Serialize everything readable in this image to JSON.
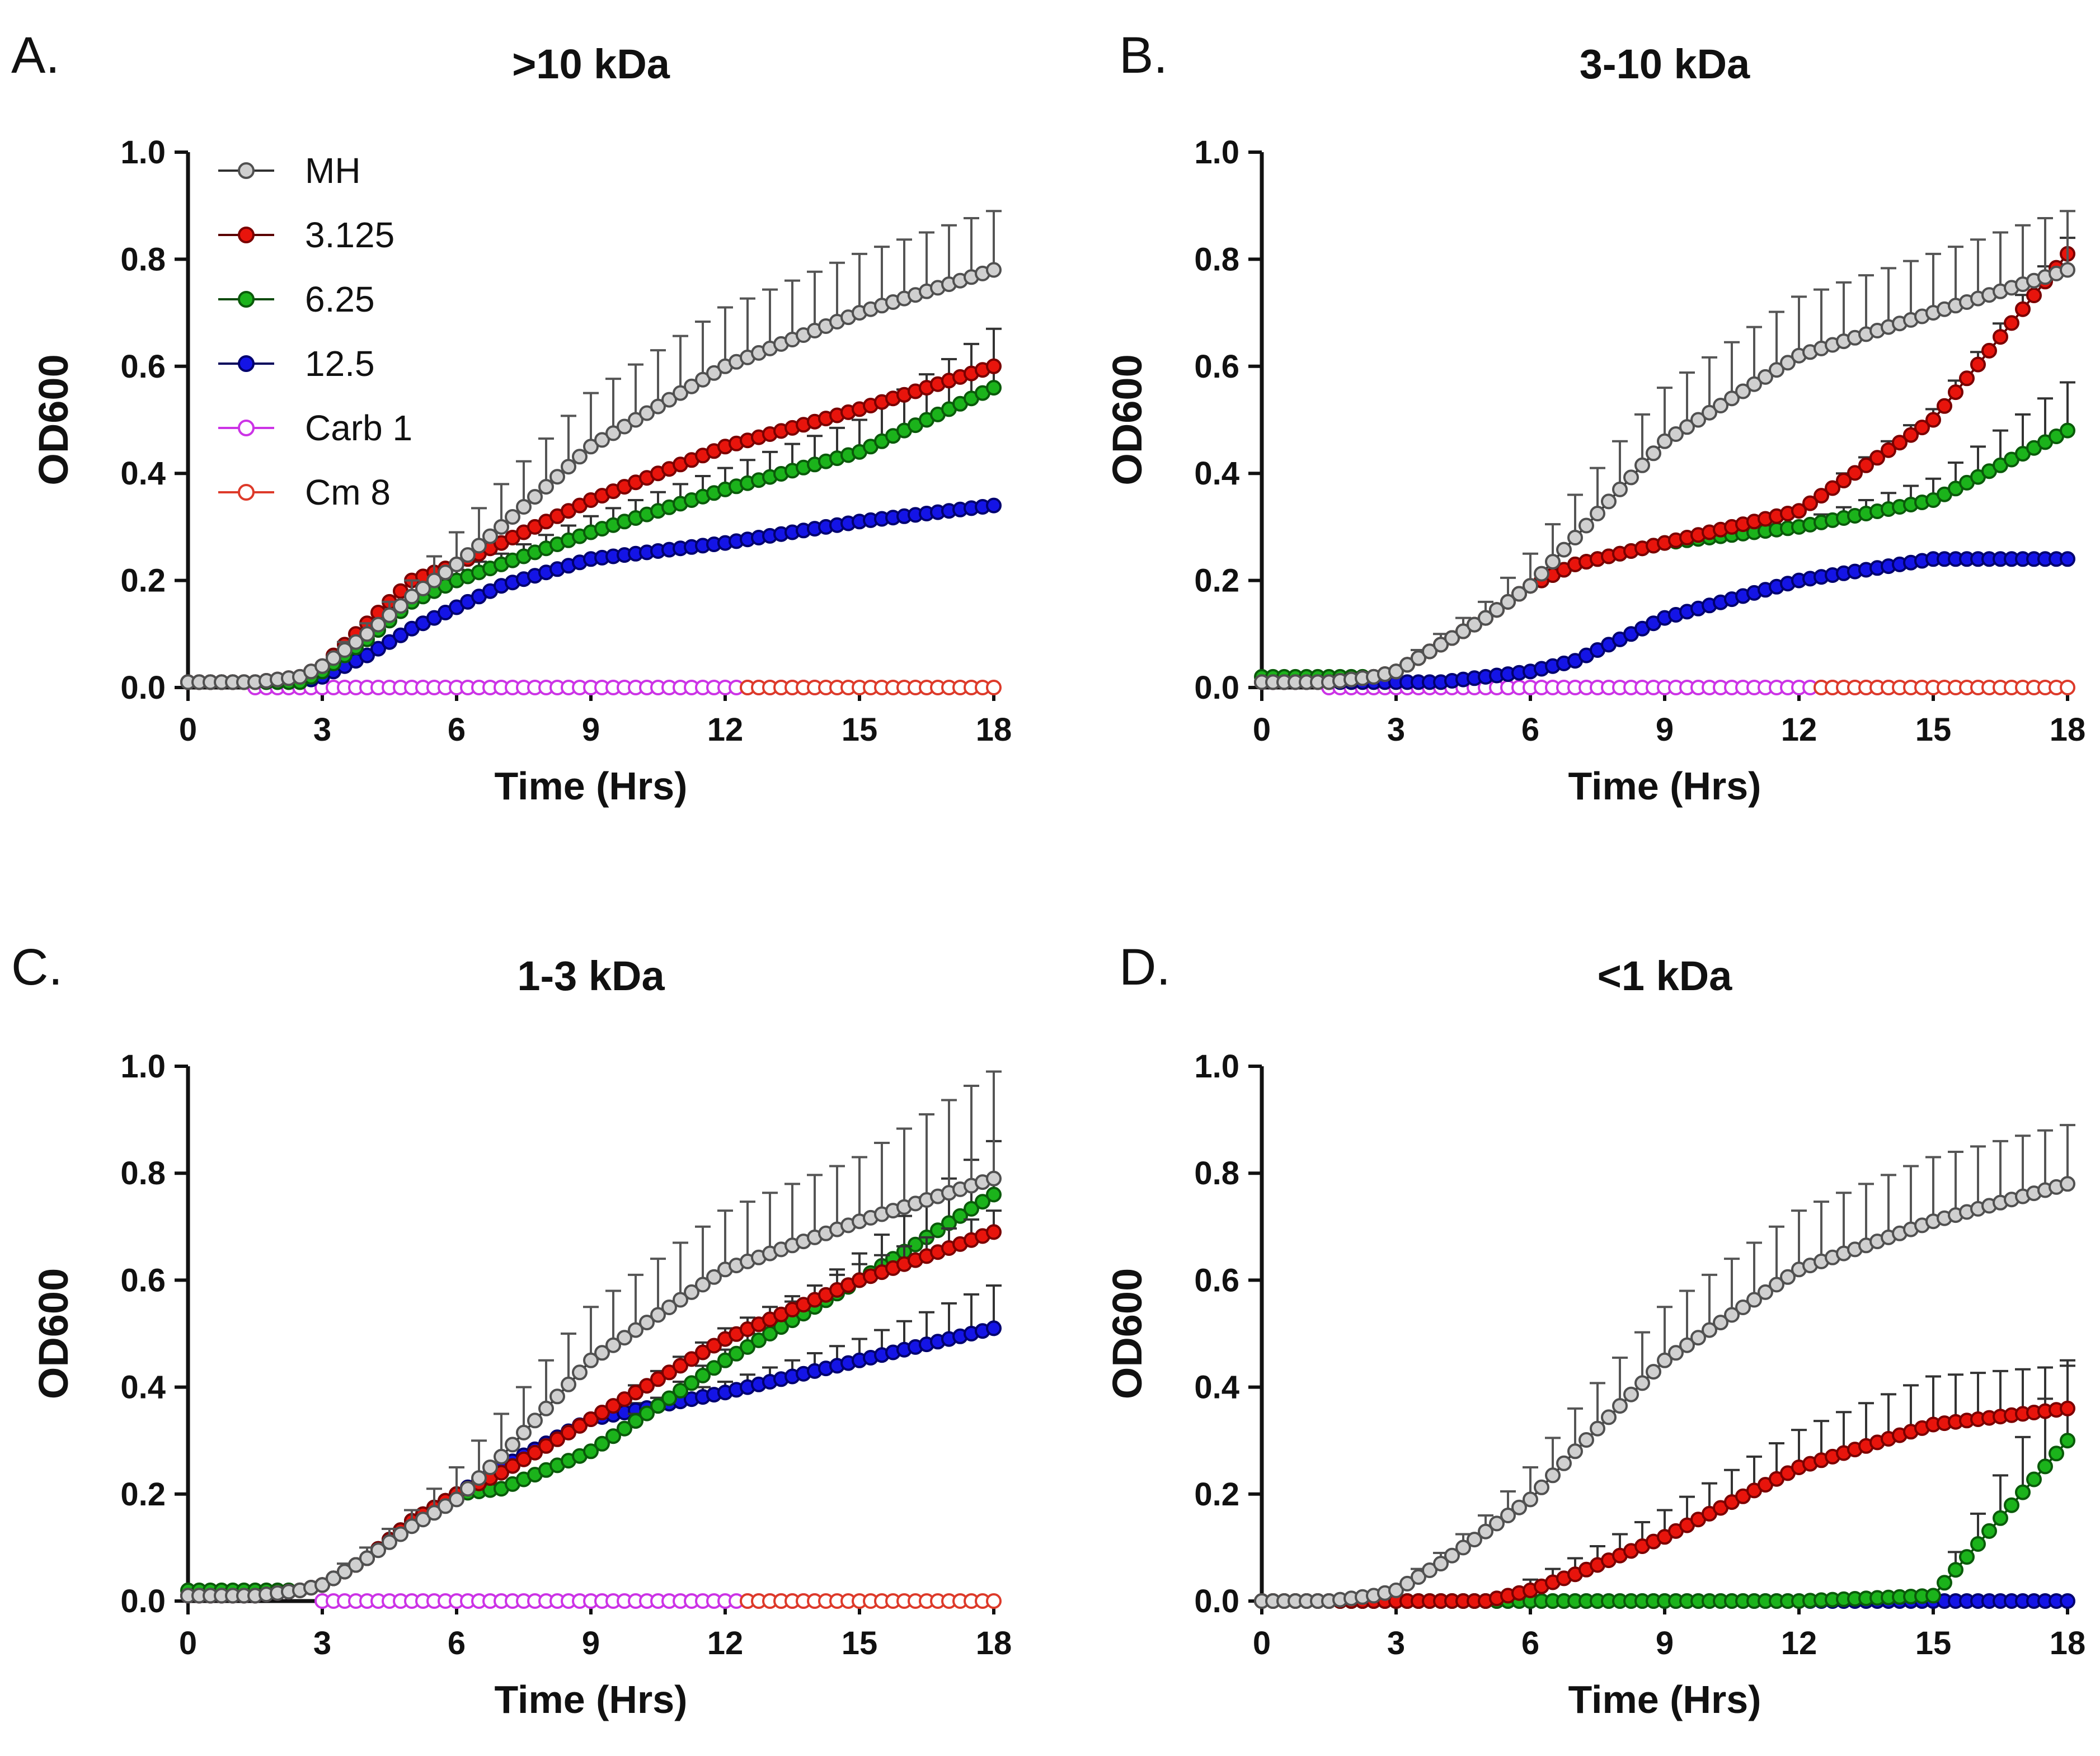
{
  "figure": {
    "description_free": true
  },
  "series_styles": [
    {
      "key": "MH",
      "fill": "#d0d0d0",
      "stroke": "#505050",
      "line": "#303030",
      "hollow": false
    },
    {
      "key": "3.125",
      "fill": "#e8140c",
      "stroke": "#7a0000",
      "line": "#5a0000",
      "hollow": false
    },
    {
      "key": "6.25",
      "fill": "#1bb31b",
      "stroke": "#0a5a0a",
      "line": "#0a4a0a",
      "hollow": false
    },
    {
      "key": "12.5",
      "fill": "#1414e6",
      "stroke": "#00006e",
      "line": "#00005a",
      "hollow": false
    },
    {
      "key": "Carb 1",
      "fill": "#ffffff",
      "stroke": "#cc33e6",
      "line": "#cc33e6",
      "hollow": true
    },
    {
      "key": "Cm 8",
      "fill": "#ffffff",
      "stroke": "#dd3a2a",
      "line": "#dd3a2a",
      "hollow": true
    }
  ],
  "legend": {
    "entries": [
      "MH",
      "3.125",
      "6.25",
      "12.5",
      "Carb 1",
      "Cm 8"
    ]
  },
  "chart_data": [
    {
      "type": "line",
      "panel_label": "A.",
      "title": ">10 kDa",
      "xlabel": "Time (Hrs)",
      "ylabel": "OD600",
      "xlim": [
        0,
        18
      ],
      "ylim": [
        0,
        1.0
      ],
      "xticks": [
        0,
        3,
        6,
        9,
        12,
        15,
        18
      ],
      "yticks": [
        "0.0",
        "0.2",
        "0.4",
        "0.6",
        "0.8",
        "1.0"
      ],
      "has_legend": true,
      "x": [
        0,
        1.5,
        2.5,
        3,
        4,
        5,
        6,
        7,
        9,
        12,
        15,
        18
      ],
      "series": [
        {
          "name": "MH",
          "values": [
            0.01,
            0.01,
            0.02,
            0.04,
            0.1,
            0.17,
            0.23,
            0.3,
            0.45,
            0.6,
            0.7,
            0.78
          ],
          "error": [
            0,
            0,
            0,
            0.01,
            0.02,
            0.03,
            0.06,
            0.08,
            0.1,
            0.11,
            0.11,
            0.11
          ]
        },
        {
          "name": "3.125",
          "values": [
            0.01,
            0.01,
            0.02,
            0.04,
            0.12,
            0.2,
            0.23,
            0.27,
            0.35,
            0.45,
            0.52,
            0.6
          ],
          "error": [
            0,
            0,
            0,
            0,
            0.01,
            0.01,
            0.01,
            0.01,
            0.01,
            0.01,
            0.01,
            0.01
          ]
        },
        {
          "name": "6.25",
          "values": [
            0.01,
            0.01,
            0.01,
            0.03,
            0.09,
            0.16,
            0.2,
            0.23,
            0.29,
            0.37,
            0.44,
            0.56
          ],
          "error": [
            0,
            0,
            0,
            0,
            0.01,
            0.01,
            0.02,
            0.02,
            0.03,
            0.04,
            0.06,
            0.11
          ]
        },
        {
          "name": "12.5",
          "values": [
            0.01,
            0.01,
            0.01,
            0.02,
            0.06,
            0.11,
            0.15,
            0.19,
            0.24,
            0.27,
            0.31,
            0.34
          ],
          "error": [
            0,
            0,
            0,
            0,
            0.005,
            0.005,
            0.005,
            0.005,
            0.005,
            0.005,
            0.005,
            0.005
          ]
        },
        {
          "name": "Carb 1",
          "values": [
            0.0,
            0.0,
            0.0,
            0.0,
            0.0,
            0.0,
            0.0,
            0.0,
            0.0,
            0.0,
            0.0,
            0.0
          ],
          "error": [],
          "x_range": [
            1.5,
            14
          ]
        },
        {
          "name": "Cm 8",
          "values": [
            0.0,
            0.0
          ],
          "error": [],
          "x": [
            12.5,
            18
          ]
        }
      ]
    },
    {
      "type": "line",
      "panel_label": "B.",
      "title": "3-10 kDa",
      "xlabel": "Time (Hrs)",
      "ylabel": "OD600",
      "xlim": [
        0,
        18
      ],
      "ylim": [
        0,
        1.0
      ],
      "xticks": [
        0,
        3,
        6,
        9,
        12,
        15,
        18
      ],
      "yticks": [
        "0.0",
        "0.2",
        "0.4",
        "0.6",
        "0.8",
        "1.0"
      ],
      "has_legend": false,
      "x": [
        0,
        1.5,
        2.5,
        3,
        4,
        5,
        6,
        7,
        9,
        12,
        15,
        18
      ],
      "series": [
        {
          "name": "MH",
          "values": [
            0.01,
            0.01,
            0.02,
            0.03,
            0.08,
            0.13,
            0.19,
            0.28,
            0.46,
            0.62,
            0.7,
            0.78
          ],
          "error": [
            0,
            0,
            0,
            0.01,
            0.02,
            0.03,
            0.06,
            0.08,
            0.1,
            0.11,
            0.11,
            0.11
          ]
        },
        {
          "name": "3.125",
          "values": [
            0.01,
            0.01,
            0.02,
            0.03,
            0.08,
            0.13,
            0.19,
            0.23,
            0.27,
            0.33,
            0.5,
            0.81
          ],
          "error": [
            0,
            0,
            0,
            0,
            0.005,
            0.01,
            0.01,
            0.01,
            0.01,
            0.01,
            0.02,
            0.03
          ]
        },
        {
          "name": "6.25",
          "values": [
            0.02,
            0.02,
            0.02,
            0.03,
            0.08,
            0.13,
            0.19,
            0.23,
            0.27,
            0.3,
            0.35,
            0.48
          ],
          "error": [
            0,
            0,
            0,
            0,
            0.005,
            0.01,
            0.01,
            0.01,
            0.01,
            0.01,
            0.04,
            0.09
          ]
        },
        {
          "name": "12.5",
          "values": [
            0.01,
            0.01,
            0.01,
            0.01,
            0.01,
            0.02,
            0.03,
            0.05,
            0.13,
            0.2,
            0.24,
            0.24
          ],
          "error": [
            0,
            0,
            0,
            0,
            0,
            0,
            0,
            0.005,
            0.005,
            0.005,
            0.005,
            0.01
          ]
        },
        {
          "name": "Carb 1",
          "values": [
            0.0,
            0.0,
            0.0,
            0.0,
            0.0,
            0.0,
            0.0,
            0.0,
            0.0,
            0.0,
            0.0,
            0.0
          ],
          "error": [],
          "x_range": [
            1.5,
            14
          ]
        },
        {
          "name": "Cm 8",
          "values": [
            0.0,
            0.0
          ],
          "error": [],
          "x": [
            12.5,
            18
          ]
        }
      ]
    },
    {
      "type": "line",
      "panel_label": "C.",
      "title": "1-3 kDa",
      "xlabel": "Time (Hrs)",
      "ylabel": "OD600",
      "xlim": [
        0,
        18
      ],
      "ylim": [
        0,
        1.0
      ],
      "xticks": [
        0,
        3,
        6,
        9,
        12,
        15,
        18
      ],
      "yticks": [
        "0.0",
        "0.2",
        "0.4",
        "0.6",
        "0.8",
        "1.0"
      ],
      "has_legend": false,
      "x": [
        0,
        1.5,
        2.5,
        3,
        4,
        5,
        6,
        7,
        9,
        12,
        15,
        18
      ],
      "series": [
        {
          "name": "MH",
          "values": [
            0.01,
            0.01,
            0.02,
            0.03,
            0.08,
            0.14,
            0.19,
            0.27,
            0.45,
            0.62,
            0.71,
            0.79
          ],
          "error": [
            0,
            0,
            0,
            0.01,
            0.02,
            0.03,
            0.06,
            0.08,
            0.1,
            0.11,
            0.12,
            0.2
          ]
        },
        {
          "name": "3.125",
          "values": [
            0.01,
            0.01,
            0.02,
            0.03,
            0.08,
            0.15,
            0.2,
            0.24,
            0.34,
            0.49,
            0.6,
            0.69
          ],
          "error": [
            0,
            0,
            0,
            0,
            0.005,
            0.01,
            0.01,
            0.01,
            0.01,
            0.02,
            0.03,
            0.04
          ]
        },
        {
          "name": "6.25",
          "values": [
            0.02,
            0.02,
            0.02,
            0.03,
            0.08,
            0.15,
            0.2,
            0.21,
            0.28,
            0.45,
            0.6,
            0.76
          ],
          "error": [
            0,
            0,
            0,
            0,
            0.005,
            0.01,
            0.01,
            0.01,
            0.01,
            0.02,
            0.05,
            0.1
          ]
        },
        {
          "name": "12.5",
          "values": [
            0.01,
            0.01,
            0.02,
            0.03,
            0.08,
            0.15,
            0.2,
            0.25,
            0.34,
            0.39,
            0.45,
            0.51
          ],
          "error": [
            0,
            0,
            0,
            0,
            0.005,
            0.01,
            0.01,
            0.01,
            0.01,
            0.02,
            0.04,
            0.08
          ]
        },
        {
          "name": "Carb 1",
          "values": [
            0.0,
            0.0,
            0.0,
            0.0,
            0.0,
            0.0,
            0.0,
            0.0,
            0.0,
            0.0,
            0.0,
            0.0
          ],
          "error": [],
          "x_range": [
            3,
            14
          ]
        },
        {
          "name": "Cm 8",
          "values": [
            0.0,
            0.0
          ],
          "error": [],
          "x": [
            12.5,
            18
          ]
        }
      ]
    },
    {
      "type": "line",
      "panel_label": "D.",
      "title": "<1 kDa",
      "xlabel": "Time (Hrs)",
      "ylabel": "OD600",
      "xlim": [
        0,
        18
      ],
      "ylim": [
        0,
        1.0
      ],
      "xticks": [
        0,
        3,
        6,
        9,
        12,
        15,
        18
      ],
      "yticks": [
        "0.0",
        "0.2",
        "0.4",
        "0.6",
        "0.8",
        "1.0"
      ],
      "has_legend": false,
      "x": [
        0,
        1.5,
        2.5,
        3,
        4,
        5,
        6,
        7,
        9,
        12,
        15,
        18
      ],
      "series": [
        {
          "name": "MH",
          "values": [
            0.0,
            0.0,
            0.01,
            0.02,
            0.07,
            0.13,
            0.19,
            0.28,
            0.45,
            0.62,
            0.71,
            0.78
          ],
          "error": [
            0,
            0,
            0,
            0.01,
            0.02,
            0.03,
            0.06,
            0.08,
            0.1,
            0.11,
            0.12,
            0.11
          ]
        },
        {
          "name": "3.125",
          "values": [
            0.0,
            0.0,
            0.0,
            0.0,
            0.0,
            0.0,
            0.02,
            0.05,
            0.12,
            0.25,
            0.33,
            0.36
          ],
          "error": [
            0,
            0,
            0,
            0,
            0,
            0,
            0.02,
            0.03,
            0.05,
            0.07,
            0.09,
            0.08
          ]
        },
        {
          "name": "6.25",
          "values": [
            0.0,
            0.0,
            0.0,
            0.0,
            0.0,
            0.0,
            0.0,
            0.0,
            0.0,
            0.0,
            0.01,
            0.3
          ],
          "error": [
            0,
            0,
            0,
            0,
            0,
            0,
            0,
            0,
            0,
            0,
            0.01,
            0.15
          ]
        },
        {
          "name": "12.5",
          "values": [
            0.0,
            0.0,
            0.0,
            0.0,
            0.0,
            0.0,
            0.0,
            0.0,
            0.0,
            0.0,
            0.0,
            0.0
          ],
          "error": []
        }
      ]
    }
  ]
}
